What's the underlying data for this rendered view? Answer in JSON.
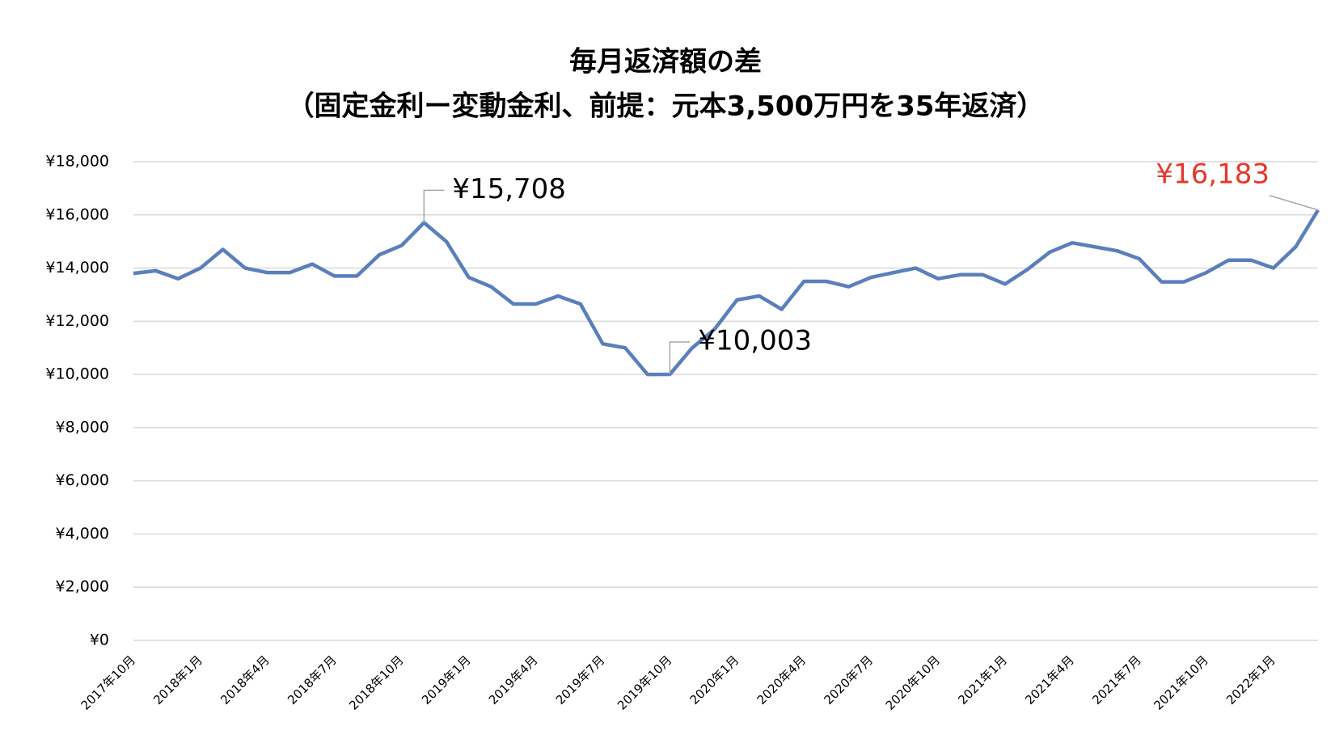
{
  "chart_data": {
    "type": "line",
    "title": "毎月返済額の差",
    "subtitle": "（固定金利ー変動金利、前提：元本3,500万円を35年返済）",
    "categories": [
      "2017年10月",
      null,
      null,
      "2018年1月",
      null,
      null,
      "2018年4月",
      null,
      null,
      "2018年7月",
      null,
      null,
      "2018年10月",
      null,
      null,
      "2019年1月",
      null,
      null,
      "2019年4月",
      null,
      null,
      "2019年7月",
      null,
      null,
      "2019年10月",
      null,
      null,
      "2020年1月",
      null,
      null,
      "2020年4月",
      null,
      null,
      "2020年7月",
      null,
      null,
      "2020年10月",
      null,
      null,
      "2021年1月",
      null,
      null,
      "2021年4月",
      null,
      null,
      "2021年7月",
      null,
      null,
      "2021年10月",
      null,
      null,
      "2022年1月",
      null,
      null
    ],
    "values": [
      13800,
      13900,
      13600,
      14000,
      14700,
      14000,
      13830,
      13830,
      14150,
      13700,
      13700,
      14500,
      14850,
      15708,
      15000,
      13650,
      13300,
      12650,
      12650,
      12950,
      12650,
      11150,
      11000,
      10000,
      10003,
      11000,
      11700,
      12800,
      12950,
      12450,
      13500,
      13500,
      13300,
      13650,
      13830,
      14000,
      13600,
      13750,
      13750,
      13400,
      13950,
      14600,
      14950,
      14800,
      14650,
      14350,
      13480,
      13480,
      13830,
      14300,
      14300,
      14000,
      14800,
      16183
    ],
    "value_labels": [
      null,
      null,
      null,
      null,
      null,
      null,
      null,
      null,
      null,
      null,
      null,
      null,
      null,
      "¥15,708",
      null,
      null,
      null,
      null,
      null,
      null,
      null,
      null,
      null,
      null,
      "¥10,003",
      null,
      null,
      null,
      null,
      null,
      null,
      null,
      null,
      null,
      null,
      null,
      null,
      null,
      null,
      null,
      null,
      null,
      null,
      null,
      null,
      null,
      null,
      null,
      null,
      null,
      null,
      null,
      null,
      "¥16,183"
    ],
    "color": "#5b7fbd",
    "highlight_label_color": "#e8372b",
    "ylim": [
      0,
      18000
    ],
    "yticks": [
      {
        "value": 0,
        "label": "¥0"
      },
      {
        "value": 2000,
        "label": "¥2,000"
      },
      {
        "value": 4000,
        "label": "¥4,000"
      },
      {
        "value": 6000,
        "label": "¥6,000"
      },
      {
        "value": 8000,
        "label": "¥8,000"
      },
      {
        "value": 10000,
        "label": "¥10,000"
      },
      {
        "value": 12000,
        "label": "¥12,000"
      },
      {
        "value": 14000,
        "label": "¥14,000"
      },
      {
        "value": 16000,
        "label": "¥16,000"
      },
      {
        "value": 18000,
        "label": "¥18,000"
      }
    ],
    "grid": true
  }
}
